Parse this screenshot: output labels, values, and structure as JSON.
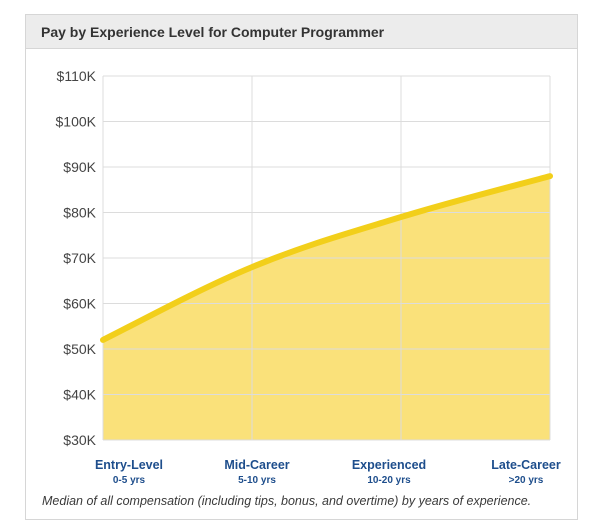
{
  "header": {
    "title": "Pay by Experience Level for Computer Programmer"
  },
  "caption": "Median of all compensation (including tips, bonus, and overtime) by years of experience.",
  "colors": {
    "line": "#f2cf1a",
    "fill": "#fae17a",
    "grid": "#dcdcdc",
    "tick_label": "#444444",
    "category_label": "#1e4e8c"
  },
  "chart_data": {
    "type": "area",
    "categories": [
      "Entry-Level",
      "Mid-Career",
      "Experienced",
      "Late-Career"
    ],
    "category_sublabels": [
      "0-5 yrs",
      "5-10 yrs",
      "10-20 yrs",
      ">20 yrs"
    ],
    "values": [
      52000,
      68000,
      79000,
      88000
    ],
    "ylim": [
      30000,
      110000
    ],
    "yticks": [
      30000,
      40000,
      50000,
      60000,
      70000,
      80000,
      90000,
      100000,
      110000
    ],
    "ytick_labels": [
      "$30K",
      "$40K",
      "$50K",
      "$60K",
      "$70K",
      "$80K",
      "$90K",
      "$100K",
      "$110K"
    ],
    "grid": true,
    "legend": "none"
  }
}
